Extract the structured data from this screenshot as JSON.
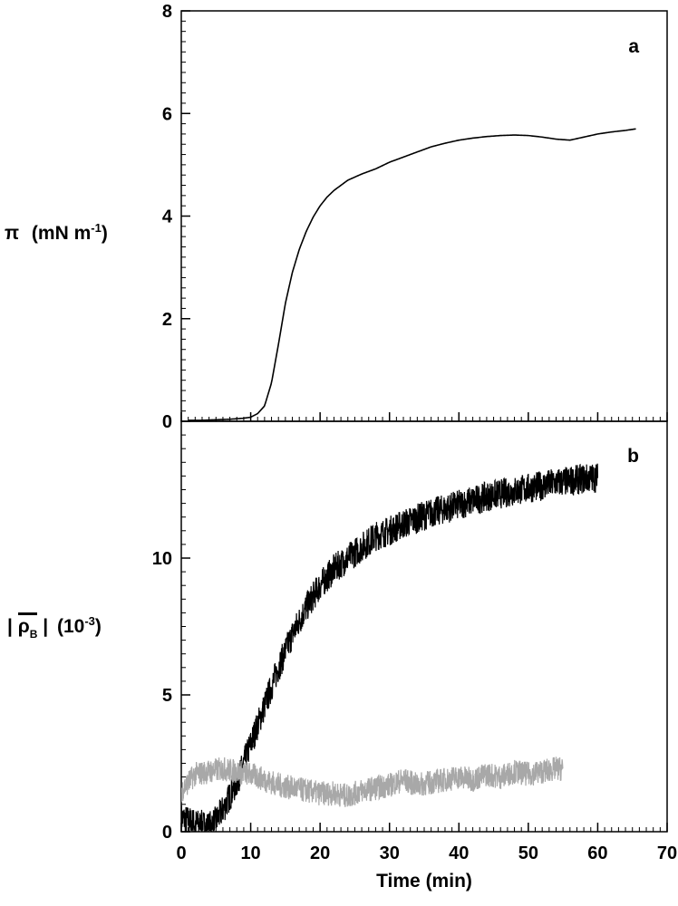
{
  "chart_data": [
    {
      "type": "line",
      "panel_label": "a",
      "ylabel": {
        "symbol": "π",
        "unit": "(mN m",
        "sup": "-1",
        "close": ")"
      },
      "xlim": [
        0,
        70
      ],
      "ylim": [
        0,
        8
      ],
      "xticks": [
        "0",
        "10",
        "20",
        "30",
        "40",
        "50",
        "60",
        "70"
      ],
      "yticks": [
        "0",
        "2",
        "4",
        "6",
        "8"
      ],
      "grid": false,
      "series": [
        {
          "color": "#000000",
          "x": [
            1,
            3,
            5,
            7,
            9,
            10,
            11,
            12,
            13,
            14,
            15,
            16,
            17,
            18,
            19,
            20,
            21,
            22,
            23,
            24,
            25,
            26,
            28,
            30,
            32,
            34,
            36,
            38,
            40,
            42,
            44,
            46,
            48,
            50,
            52,
            54,
            56,
            58,
            60,
            62,
            64,
            65.5
          ],
          "y": [
            0.02,
            0.02,
            0.03,
            0.04,
            0.06,
            0.08,
            0.15,
            0.3,
            0.75,
            1.5,
            2.3,
            2.9,
            3.35,
            3.7,
            3.98,
            4.2,
            4.37,
            4.5,
            4.6,
            4.7,
            4.76,
            4.82,
            4.92,
            5.05,
            5.15,
            5.25,
            5.35,
            5.42,
            5.48,
            5.52,
            5.55,
            5.57,
            5.58,
            5.57,
            5.54,
            5.5,
            5.48,
            5.54,
            5.6,
            5.64,
            5.67,
            5.7
          ]
        }
      ]
    },
    {
      "type": "line",
      "panel_label": "b",
      "ylabel": {
        "bar_open": "|",
        "symbol": "ρ",
        "subscript": "B",
        "bar_close": "|",
        "unit": "(10",
        "sup": "-3",
        "close": ")"
      },
      "xlabel": "Time (min)",
      "xlim": [
        0,
        70
      ],
      "ylim": [
        0,
        15
      ],
      "xticks": [
        "0",
        "10",
        "20",
        "30",
        "40",
        "50",
        "60",
        "70"
      ],
      "yticks": [
        "0",
        "5",
        "10"
      ],
      "grid": false,
      "series": [
        {
          "color": "#000000",
          "noise": 0.55,
          "x": [
            0,
            2,
            4,
            5,
            6,
            8,
            10,
            12,
            14,
            16,
            18,
            20,
            22,
            24,
            26,
            28,
            30,
            32,
            34,
            36,
            38,
            40,
            42,
            44,
            46,
            48,
            50,
            52,
            54,
            56,
            58,
            60
          ],
          "y": [
            0.5,
            0.3,
            0.2,
            0.4,
            0.8,
            1.8,
            3.2,
            4.6,
            6.0,
            7.2,
            8.2,
            9.0,
            9.6,
            10.0,
            10.4,
            10.8,
            11.0,
            11.25,
            11.45,
            11.65,
            11.8,
            11.95,
            12.1,
            12.25,
            12.35,
            12.45,
            12.55,
            12.65,
            12.75,
            12.82,
            12.9,
            12.95
          ]
        },
        {
          "color": "#a8a8a8",
          "noise": 0.45,
          "x": [
            0,
            2,
            4,
            6,
            8,
            10,
            12,
            14,
            16,
            18,
            20,
            22,
            24,
            26,
            28,
            30,
            32,
            34,
            36,
            38,
            40,
            42,
            44,
            46,
            48,
            50,
            52,
            54,
            55
          ],
          "y": [
            1.5,
            2.1,
            2.2,
            2.3,
            2.2,
            2.1,
            1.9,
            1.7,
            1.6,
            1.5,
            1.4,
            1.4,
            1.3,
            1.5,
            1.6,
            1.7,
            1.9,
            1.7,
            1.8,
            1.9,
            2.0,
            1.9,
            2.1,
            2.0,
            2.2,
            2.1,
            2.2,
            2.3,
            2.3
          ]
        }
      ]
    }
  ]
}
